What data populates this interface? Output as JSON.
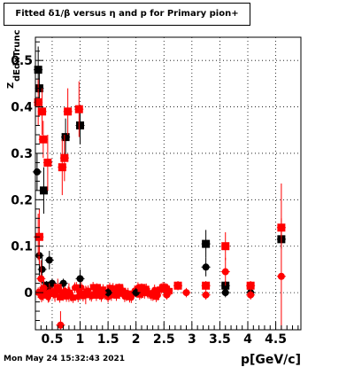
{
  "header": {
    "title": "Fitted δ1/β versus η and p for Primary pion+"
  },
  "footer": {
    "timestamp": "Mon May 24 15:32:43 2021"
  },
  "chart_data": {
    "type": "scatter",
    "title": "Fitted δ1/β versus η and p for Primary pion+",
    "xlabel": "p[GeV/c]",
    "ylabel": "Z",
    "ylabel_sub": "dEdxTrunc",
    "xlim": [
      0.2,
      4.95
    ],
    "ylim": [
      -0.08,
      0.55
    ],
    "grid": true,
    "x_ticks": [
      {
        "v": 0.5,
        "label": "0.5"
      },
      {
        "v": 1.0,
        "label": "1"
      },
      {
        "v": 1.5,
        "label": "1.5"
      },
      {
        "v": 2.0,
        "label": "2"
      },
      {
        "v": 2.5,
        "label": "2.5"
      },
      {
        "v": 3.0,
        "label": "3"
      },
      {
        "v": 3.5,
        "label": "3.5"
      },
      {
        "v": 4.0,
        "label": "4"
      },
      {
        "v": 4.5,
        "label": "4.5"
      }
    ],
    "y_ticks": [
      {
        "v": 0.0,
        "label": "0"
      },
      {
        "v": 0.1,
        "label": "0.1"
      },
      {
        "v": 0.2,
        "label": "0.2"
      },
      {
        "v": 0.3,
        "label": "0.3"
      },
      {
        "v": 0.4,
        "label": "0.4"
      },
      {
        "v": 0.5,
        "label": "0.5"
      }
    ],
    "series": [
      {
        "color": "#000000",
        "marker": "circle",
        "points": [
          {
            "x": 0.23,
            "y": 0.26,
            "ey": 0.04
          },
          {
            "x": 0.27,
            "y": 0.08,
            "ey": 0.05
          },
          {
            "x": 0.32,
            "y": 0.05,
            "ey": 0.03
          },
          {
            "x": 0.45,
            "y": 0.07,
            "ey": 0.02
          },
          {
            "x": 0.5,
            "y": 0.02,
            "ey": 0.01
          },
          {
            "x": 0.7,
            "y": 0.02,
            "ey": 0.01
          },
          {
            "x": 1.0,
            "y": 0.03,
            "ey": 0.02
          },
          {
            "x": 1.5,
            "y": 0.0,
            "ey": 0.01
          },
          {
            "x": 2.0,
            "y": 0.0,
            "ey": 0.01
          },
          {
            "x": 3.25,
            "y": 0.055,
            "ey": 0.02
          },
          {
            "x": 3.6,
            "y": 0.0,
            "ey": 0.01
          },
          {
            "x": 4.05,
            "y": 0.0,
            "ey": 0.01
          }
        ]
      },
      {
        "color": "#000000",
        "marker": "square",
        "points": [
          {
            "x": 0.25,
            "y": 0.48,
            "ey": 0.05
          },
          {
            "x": 0.27,
            "y": 0.44,
            "ey": 0.04
          },
          {
            "x": 0.35,
            "y": 0.22,
            "ey": 0.05
          },
          {
            "x": 0.4,
            "y": 0.015,
            "ey": 0.01
          },
          {
            "x": 0.74,
            "y": 0.335,
            "ey": 0.04
          },
          {
            "x": 1.0,
            "y": 0.36,
            "ey": 0.04
          },
          {
            "x": 3.25,
            "y": 0.105,
            "ey": 0.03
          },
          {
            "x": 3.6,
            "y": 0.015,
            "ey": 0.01
          },
          {
            "x": 4.6,
            "y": 0.115,
            "ey": 0.02
          }
        ]
      },
      {
        "color": "#ff0000",
        "marker": "circle",
        "points": [
          {
            "x": 0.25,
            "y": 0.12,
            "ey": 0.05
          },
          {
            "x": 0.3,
            "y": 0.03,
            "ey": 0.04
          },
          {
            "x": 0.35,
            "y": 0.01,
            "ey": 0.02
          },
          {
            "x": 0.45,
            "y": 0.0,
            "ey": 0.02
          },
          {
            "x": 0.55,
            "y": 0.0,
            "ey": 0.02
          },
          {
            "x": 0.65,
            "y": -0.07,
            "ey": 0.03
          },
          {
            "x": 0.8,
            "y": 0.0,
            "ey": 0.02
          },
          {
            "x": 1.1,
            "y": -0.005,
            "ey": 0.02
          },
          {
            "x": 1.4,
            "y": 0.0,
            "ey": 0.01
          },
          {
            "x": 1.8,
            "y": 0.0,
            "ey": 0.01
          },
          {
            "x": 2.2,
            "y": 0.0,
            "ey": 0.01
          },
          {
            "x": 2.55,
            "y": -0.005,
            "ey": 0.01
          },
          {
            "x": 2.9,
            "y": 0.0,
            "ey": 0.01
          },
          {
            "x": 3.25,
            "y": -0.005,
            "ey": 0.01
          },
          {
            "x": 3.6,
            "y": 0.045,
            "ey": 0.03
          },
          {
            "x": 4.05,
            "y": -0.005,
            "ey": 0.01
          },
          {
            "x": 4.6,
            "y": 0.035,
            "ey": 0.2
          }
        ]
      },
      {
        "color": "#ff0000",
        "marker": "square",
        "points": [
          {
            "x": 0.25,
            "y": 0.41,
            "ey": 0.05
          },
          {
            "x": 0.27,
            "y": 0.12,
            "ey": 0.06
          },
          {
            "x": 0.32,
            "y": 0.39,
            "ey": 0.05
          },
          {
            "x": 0.34,
            "y": 0.33,
            "ey": 0.04
          },
          {
            "x": 0.42,
            "y": 0.28,
            "ey": 0.06
          },
          {
            "x": 0.6,
            "y": 0.01,
            "ey": 0.02
          },
          {
            "x": 0.68,
            "y": 0.27,
            "ey": 0.06
          },
          {
            "x": 0.72,
            "y": 0.29,
            "ey": 0.05
          },
          {
            "x": 0.78,
            "y": 0.39,
            "ey": 0.05
          },
          {
            "x": 0.98,
            "y": 0.395,
            "ey": 0.06
          },
          {
            "x": 1.3,
            "y": 0.01,
            "ey": 0.01
          },
          {
            "x": 1.7,
            "y": 0.01,
            "ey": 0.01
          },
          {
            "x": 2.1,
            "y": 0.01,
            "ey": 0.01
          },
          {
            "x": 2.5,
            "y": 0.01,
            "ey": 0.01
          },
          {
            "x": 2.75,
            "y": 0.015,
            "ey": 0.01
          },
          {
            "x": 3.25,
            "y": 0.015,
            "ey": 0.01
          },
          {
            "x": 3.6,
            "y": 0.1,
            "ey": 0.03
          },
          {
            "x": 4.05,
            "y": 0.015,
            "ey": 0.01
          },
          {
            "x": 4.6,
            "y": 0.14,
            "ey": 0.02
          }
        ]
      }
    ],
    "lowp_cluster": {
      "color": "#ff0000",
      "x_from": 0.25,
      "x_to": 2.6,
      "y_center": 0.0,
      "spread": 0.012,
      "count": 80
    }
  }
}
